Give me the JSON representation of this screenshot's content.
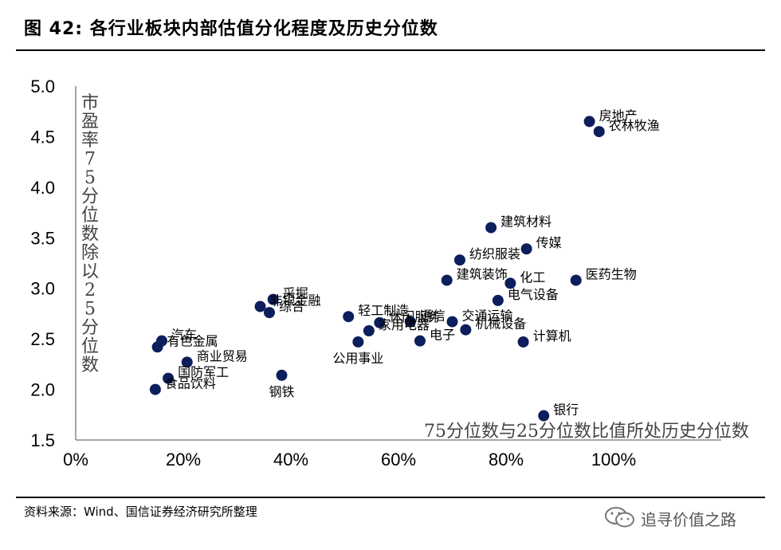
{
  "header": {
    "title": "图  42:  各行业板块内部估值分化程度及历史分位数"
  },
  "footer": {
    "source": "资料来源：Wind、国信证券经济研究所整理",
    "watermark": "追寻价值之路"
  },
  "chart_data": {
    "type": "scatter",
    "xlabel": "75分位数与25分位数比值所处历史分位数",
    "ylabel": "市盈率75分位数除以25分位数",
    "xlim": [
      0,
      1.2
    ],
    "ylim": [
      1.5,
      5.0
    ],
    "xticks": [
      "0%",
      "20%",
      "40%",
      "60%",
      "80%",
      "100%"
    ],
    "xtick_values": [
      0,
      0.2,
      0.4,
      0.6,
      0.8,
      1.0
    ],
    "yticks": [
      "1.5",
      "2.0",
      "2.5",
      "3.0",
      "3.5",
      "4.0",
      "4.5",
      "5.0"
    ],
    "ytick_values": [
      1.5,
      2.0,
      2.5,
      3.0,
      3.5,
      4.0,
      4.5,
      5.0
    ],
    "grid": false,
    "legend": "none",
    "marker_color": "#0d1e5c",
    "points": [
      {
        "label": "房地产",
        "x": 0.955,
        "y": 4.65,
        "pos": "right"
      },
      {
        "label": "农林牧渔",
        "x": 0.973,
        "y": 4.55,
        "pos": "right"
      },
      {
        "label": "建筑材料",
        "x": 0.772,
        "y": 3.6,
        "pos": "right"
      },
      {
        "label": "传媒",
        "x": 0.838,
        "y": 3.39,
        "pos": "right"
      },
      {
        "label": "纺织服装",
        "x": 0.714,
        "y": 3.28,
        "pos": "right"
      },
      {
        "label": "医药生物",
        "x": 0.93,
        "y": 3.08,
        "pos": "right"
      },
      {
        "label": "建筑装饰",
        "x": 0.69,
        "y": 3.08,
        "pos": "right"
      },
      {
        "label": "化工",
        "x": 0.808,
        "y": 3.05,
        "pos": "right"
      },
      {
        "label": "电气设备",
        "x": 0.785,
        "y": 2.88,
        "pos": "right"
      },
      {
        "label": "交通运输",
        "x": 0.7,
        "y": 2.67,
        "pos": "right"
      },
      {
        "label": "通信",
        "x": 0.622,
        "y": 2.67,
        "pos": "right"
      },
      {
        "label": "机械设备",
        "x": 0.725,
        "y": 2.59,
        "pos": "right"
      },
      {
        "label": "计算机",
        "x": 0.832,
        "y": 2.47,
        "pos": "right"
      },
      {
        "label": "电子",
        "x": 0.64,
        "y": 2.48,
        "pos": "right"
      },
      {
        "label": "休闲服务",
        "x": 0.565,
        "y": 2.66,
        "pos": "right"
      },
      {
        "label": "轻工制造",
        "x": 0.507,
        "y": 2.72,
        "pos": "right"
      },
      {
        "label": "家用电器",
        "x": 0.545,
        "y": 2.58,
        "pos": "right"
      },
      {
        "label": "公用事业",
        "x": 0.525,
        "y": 2.47,
        "pos": "below"
      },
      {
        "label": "采掘",
        "x": 0.367,
        "y": 2.89,
        "pos": "right"
      },
      {
        "label": "非银金融",
        "x": 0.343,
        "y": 2.82,
        "pos": "right"
      },
      {
        "label": "综合",
        "x": 0.36,
        "y": 2.76,
        "pos": "right"
      },
      {
        "label": "钢铁",
        "x": 0.383,
        "y": 2.14,
        "pos": "below"
      },
      {
        "label": "汽车",
        "x": 0.16,
        "y": 2.48,
        "pos": "right"
      },
      {
        "label": "有色金属",
        "x": 0.152,
        "y": 2.42,
        "pos": "right"
      },
      {
        "label": "商业贸易",
        "x": 0.207,
        "y": 2.27,
        "pos": "right"
      },
      {
        "label": "国防军工",
        "x": 0.172,
        "y": 2.11,
        "pos": "right"
      },
      {
        "label": "食品饮料",
        "x": 0.148,
        "y": 2.0,
        "pos": "right"
      },
      {
        "label": "银行",
        "x": 0.87,
        "y": 1.74,
        "pos": "right"
      }
    ]
  }
}
